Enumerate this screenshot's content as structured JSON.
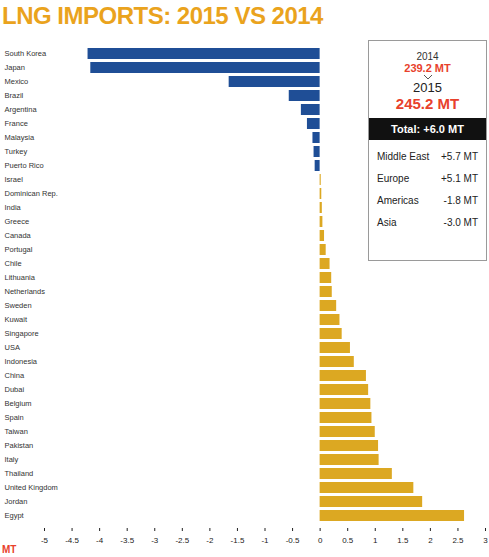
{
  "chart_data": {
    "type": "bar",
    "title": "LNG IMPORTS: 2015 VS 2014",
    "orientation": "horizontal",
    "xlabel": "MT",
    "categories": [
      "South Korea",
      "Japan",
      "Mexico",
      "Brazil",
      "Argentina",
      "France",
      "Malaysia",
      "Turkey",
      "Puerto Rico",
      "Israel",
      "Dominican Rep.",
      "India",
      "Greece",
      "Canada",
      "Portugal",
      "Chile",
      "Lithuania",
      "Netherlands",
      "Sweden",
      "Kuwait",
      "Singapore",
      "USA",
      "Indonesia",
      "China",
      "Dubai",
      "Belgium",
      "Spain",
      "Taiwan",
      "Pakistan",
      "Italy",
      "Thailand",
      "United Kingdom",
      "Jordan",
      "Egypt"
    ],
    "values": [
      -4.21,
      -4.16,
      -1.65,
      -0.56,
      -0.34,
      -0.23,
      -0.13,
      -0.11,
      -0.09,
      0.02,
      0.03,
      0.04,
      0.05,
      0.08,
      0.11,
      0.18,
      0.21,
      0.22,
      0.3,
      0.36,
      0.4,
      0.55,
      0.62,
      0.84,
      0.88,
      0.92,
      0.94,
      1.0,
      1.06,
      1.07,
      1.31,
      1.7,
      1.86,
      2.62
    ],
    "colors": [
      "#1f4e96",
      "#1f4e96",
      "#1f4e96",
      "#1f4e96",
      "#1f4e96",
      "#1f4e96",
      "#1f4e96",
      "#1f4e96",
      "#1f4e96",
      "#dca822",
      "#dca822",
      "#dca822",
      "#dca822",
      "#dca822",
      "#dca822",
      "#dca822",
      "#dca822",
      "#dca822",
      "#dca822",
      "#dca822",
      "#dca822",
      "#dca822",
      "#dca822",
      "#dca822",
      "#dca822",
      "#dca822",
      "#dca822",
      "#dca822",
      "#dca822",
      "#dca822",
      "#dca822",
      "#dca822",
      "#dca822",
      "#dca822"
    ],
    "xlim": [
      -5,
      3
    ],
    "xticks": [
      -5,
      -4.5,
      -4,
      -3.5,
      -3,
      -2.5,
      -2,
      -1.5,
      -1,
      -0.5,
      0,
      0.5,
      1,
      1.5,
      2,
      2.5,
      3
    ],
    "grid": false,
    "summary_box": {
      "year_prev": "2014",
      "value_prev": "239.2 MT",
      "year_curr": "2015",
      "value_curr": "245.2 MT",
      "total": "Total: +6.0 MT",
      "regions": [
        {
          "name": "Middle East",
          "value": "+5.7 MT"
        },
        {
          "name": "Europe",
          "value": "+5.1 MT"
        },
        {
          "name": "Americas",
          "value": "-1.8 MT"
        },
        {
          "name": "Asia",
          "value": "-3.0 MT"
        }
      ]
    }
  }
}
